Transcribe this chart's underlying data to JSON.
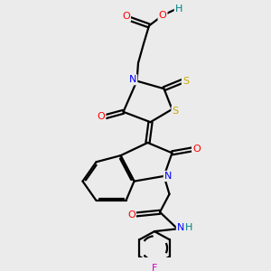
{
  "background_color": "#ebebeb",
  "atom_colors": {
    "C": "#000000",
    "N": "#0000ff",
    "O": "#ff0000",
    "S": "#ccaa00",
    "F": "#cc00cc",
    "H": "#008080"
  },
  "bond_color": "#000000",
  "bond_lw": 1.6,
  "figsize": [
    3.0,
    3.0
  ],
  "dpi": 100,
  "xlim": [
    0,
    10
  ],
  "ylim": [
    0,
    10
  ]
}
